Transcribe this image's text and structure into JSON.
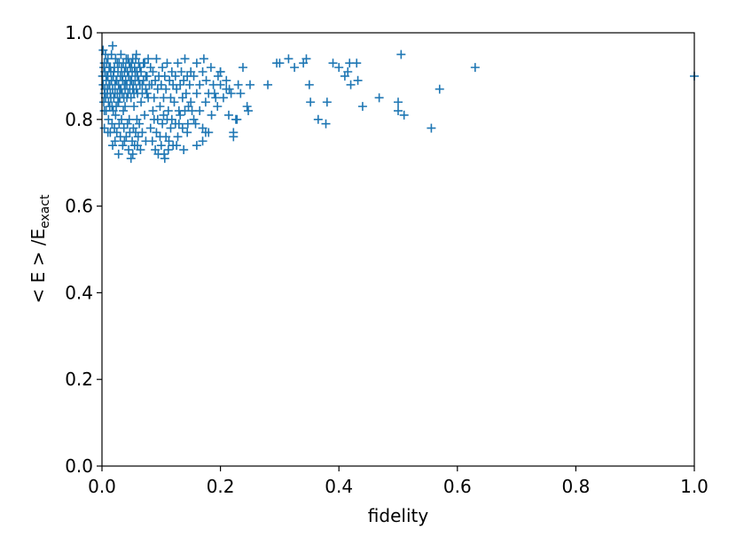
{
  "chart_data": {
    "type": "scatter",
    "xlabel": "fidelity",
    "ylabel_main": "< E > /E",
    "ylabel_sub": "exact",
    "xlim": [
      0.0,
      1.0
    ],
    "ylim": [
      0.0,
      1.0
    ],
    "xticks": [
      "0.0",
      "0.2",
      "0.4",
      "0.6",
      "0.8",
      "1.0"
    ],
    "yticks": [
      "0.0",
      "0.2",
      "0.4",
      "0.6",
      "0.8",
      "1.0"
    ],
    "marker": "+",
    "color": "#1f77b4",
    "grid": false,
    "points": [
      [
        0.002,
        0.96
      ],
      [
        0.004,
        0.93
      ],
      [
        0.006,
        0.95
      ],
      [
        0.008,
        0.9
      ],
      [
        0.01,
        0.94
      ],
      [
        0.012,
        0.88
      ],
      [
        0.014,
        0.92
      ],
      [
        0.016,
        0.95
      ],
      [
        0.018,
        0.97
      ],
      [
        0.02,
        0.91
      ],
      [
        0.022,
        0.86
      ],
      [
        0.024,
        0.89
      ],
      [
        0.026,
        0.93
      ],
      [
        0.028,
        0.84
      ],
      [
        0.03,
        0.87
      ],
      [
        0.032,
        0.95
      ],
      [
        0.034,
        0.9
      ],
      [
        0.036,
        0.82
      ],
      [
        0.038,
        0.88
      ],
      [
        0.04,
        0.92
      ],
      [
        0.042,
        0.85
      ],
      [
        0.044,
        0.94
      ],
      [
        0.046,
        0.8
      ],
      [
        0.048,
        0.89
      ],
      [
        0.05,
        0.93
      ],
      [
        0.052,
        0.87
      ],
      [
        0.054,
        0.83
      ],
      [
        0.056,
        0.91
      ],
      [
        0.058,
        0.95
      ],
      [
        0.06,
        0.86
      ],
      [
        0.062,
        0.89
      ],
      [
        0.064,
        0.92
      ],
      [
        0.066,
        0.84
      ],
      [
        0.068,
        0.88
      ],
      [
        0.07,
        0.93
      ],
      [
        0.072,
        0.81
      ],
      [
        0.074,
        0.9
      ],
      [
        0.076,
        0.86
      ],
      [
        0.078,
        0.94
      ],
      [
        0.08,
        0.88
      ],
      [
        0.003,
        0.84
      ],
      [
        0.005,
        0.87
      ],
      [
        0.007,
        0.82
      ],
      [
        0.009,
        0.86
      ],
      [
        0.011,
        0.8
      ],
      [
        0.013,
        0.83
      ],
      [
        0.015,
        0.85
      ],
      [
        0.017,
        0.79
      ],
      [
        0.019,
        0.82
      ],
      [
        0.021,
        0.78
      ],
      [
        0.023,
        0.81
      ],
      [
        0.025,
        0.77
      ],
      [
        0.027,
        0.84
      ],
      [
        0.029,
        0.79
      ],
      [
        0.031,
        0.76
      ],
      [
        0.033,
        0.8
      ],
      [
        0.035,
        0.74
      ],
      [
        0.037,
        0.78
      ],
      [
        0.039,
        0.83
      ],
      [
        0.041,
        0.76
      ],
      [
        0.043,
        0.79
      ],
      [
        0.045,
        0.73
      ],
      [
        0.047,
        0.77
      ],
      [
        0.049,
        0.71
      ],
      [
        0.051,
        0.75
      ],
      [
        0.053,
        0.78
      ],
      [
        0.055,
        0.74
      ],
      [
        0.057,
        0.77
      ],
      [
        0.059,
        0.8
      ],
      [
        0.061,
        0.76
      ],
      [
        0.063,
        0.79
      ],
      [
        0.065,
        0.73
      ],
      [
        0.001,
        0.9
      ],
      [
        0.002,
        0.88
      ],
      [
        0.003,
        0.92
      ],
      [
        0.004,
        0.86
      ],
      [
        0.005,
        0.91
      ],
      [
        0.006,
        0.85
      ],
      [
        0.007,
        0.89
      ],
      [
        0.008,
        0.93
      ],
      [
        0.009,
        0.87
      ],
      [
        0.01,
        0.9
      ],
      [
        0.011,
        0.84
      ],
      [
        0.012,
        0.92
      ],
      [
        0.013,
        0.88
      ],
      [
        0.014,
        0.86
      ],
      [
        0.015,
        0.91
      ],
      [
        0.016,
        0.89
      ],
      [
        0.017,
        0.83
      ],
      [
        0.018,
        0.87
      ],
      [
        0.019,
        0.9
      ],
      [
        0.02,
        0.85
      ],
      [
        0.021,
        0.92
      ],
      [
        0.022,
        0.88
      ],
      [
        0.023,
        0.94
      ],
      [
        0.024,
        0.83
      ],
      [
        0.025,
        0.89
      ],
      [
        0.026,
        0.86
      ],
      [
        0.027,
        0.91
      ],
      [
        0.028,
        0.88
      ],
      [
        0.029,
        0.93
      ],
      [
        0.03,
        0.85
      ],
      [
        0.031,
        0.9
      ],
      [
        0.032,
        0.87
      ],
      [
        0.033,
        0.92
      ],
      [
        0.034,
        0.86
      ],
      [
        0.035,
        0.89
      ],
      [
        0.036,
        0.93
      ],
      [
        0.037,
        0.85
      ],
      [
        0.038,
        0.91
      ],
      [
        0.039,
        0.87
      ],
      [
        0.04,
        0.89
      ],
      [
        0.041,
        0.94
      ],
      [
        0.042,
        0.88
      ],
      [
        0.043,
        0.91
      ],
      [
        0.044,
        0.86
      ],
      [
        0.045,
        0.9
      ],
      [
        0.046,
        0.93
      ],
      [
        0.047,
        0.87
      ],
      [
        0.048,
        0.92
      ],
      [
        0.049,
        0.85
      ],
      [
        0.05,
        0.89
      ],
      [
        0.051,
        0.91
      ],
      [
        0.052,
        0.94
      ],
      [
        0.053,
        0.88
      ],
      [
        0.054,
        0.86
      ],
      [
        0.055,
        0.92
      ],
      [
        0.056,
        0.89
      ],
      [
        0.057,
        0.94
      ],
      [
        0.058,
        0.87
      ],
      [
        0.059,
        0.91
      ],
      [
        0.06,
        0.9
      ],
      [
        0.062,
        0.93
      ],
      [
        0.064,
        0.88
      ],
      [
        0.066,
        0.91
      ],
      [
        0.068,
        0.86
      ],
      [
        0.07,
        0.89
      ],
      [
        0.072,
        0.93
      ],
      [
        0.074,
        0.87
      ],
      [
        0.076,
        0.9
      ],
      [
        0.078,
        0.85
      ],
      [
        0.082,
        0.92
      ],
      [
        0.084,
        0.88
      ],
      [
        0.086,
        0.91
      ],
      [
        0.088,
        0.85
      ],
      [
        0.09,
        0.89
      ],
      [
        0.092,
        0.94
      ],
      [
        0.094,
        0.87
      ],
      [
        0.096,
        0.9
      ],
      [
        0.098,
        0.83
      ],
      [
        0.1,
        0.88
      ],
      [
        0.102,
        0.92
      ],
      [
        0.104,
        0.85
      ],
      [
        0.106,
        0.9
      ],
      [
        0.108,
        0.87
      ],
      [
        0.11,
        0.93
      ],
      [
        0.112,
        0.82
      ],
      [
        0.114,
        0.89
      ],
      [
        0.116,
        0.85
      ],
      [
        0.118,
        0.91
      ],
      [
        0.12,
        0.88
      ],
      [
        0.122,
        0.84
      ],
      [
        0.124,
        0.9
      ],
      [
        0.126,
        0.87
      ],
      [
        0.128,
        0.93
      ],
      [
        0.13,
        0.82
      ],
      [
        0.132,
        0.88
      ],
      [
        0.134,
        0.91
      ],
      [
        0.136,
        0.85
      ],
      [
        0.138,
        0.89
      ],
      [
        0.14,
        0.94
      ],
      [
        0.142,
        0.86
      ],
      [
        0.144,
        0.9
      ],
      [
        0.146,
        0.83
      ],
      [
        0.148,
        0.88
      ],
      [
        0.15,
        0.91
      ],
      [
        0.082,
        0.78
      ],
      [
        0.085,
        0.75
      ],
      [
        0.088,
        0.8
      ],
      [
        0.09,
        0.73
      ],
      [
        0.092,
        0.77
      ],
      [
        0.095,
        0.72
      ],
      [
        0.098,
        0.76
      ],
      [
        0.1,
        0.74
      ],
      [
        0.102,
        0.79
      ],
      [
        0.105,
        0.72
      ],
      [
        0.108,
        0.76
      ],
      [
        0.11,
        0.8
      ],
      [
        0.113,
        0.75
      ],
      [
        0.116,
        0.78
      ],
      [
        0.12,
        0.74
      ],
      [
        0.124,
        0.79
      ],
      [
        0.128,
        0.76
      ],
      [
        0.132,
        0.81
      ],
      [
        0.136,
        0.78
      ],
      [
        0.14,
        0.82
      ],
      [
        0.145,
        0.79
      ],
      [
        0.15,
        0.84
      ],
      [
        0.155,
        0.8
      ],
      [
        0.16,
        0.86
      ],
      [
        0.165,
        0.82
      ],
      [
        0.17,
        0.78
      ],
      [
        0.175,
        0.84
      ],
      [
        0.18,
        0.77
      ],
      [
        0.185,
        0.81
      ],
      [
        0.19,
        0.86
      ],
      [
        0.195,
        0.83
      ],
      [
        0.2,
        0.88
      ],
      [
        0.155,
        0.9
      ],
      [
        0.16,
        0.93
      ],
      [
        0.165,
        0.88
      ],
      [
        0.17,
        0.91
      ],
      [
        0.172,
        0.94
      ],
      [
        0.176,
        0.89
      ],
      [
        0.18,
        0.86
      ],
      [
        0.184,
        0.92
      ],
      [
        0.188,
        0.88
      ],
      [
        0.192,
        0.85
      ],
      [
        0.196,
        0.9
      ],
      [
        0.2,
        0.91
      ],
      [
        0.205,
        0.85
      ],
      [
        0.21,
        0.87
      ],
      [
        0.214,
        0.81
      ],
      [
        0.218,
        0.86
      ],
      [
        0.222,
        0.77
      ],
      [
        0.226,
        0.8
      ],
      [
        0.23,
        0.88
      ],
      [
        0.234,
        0.86
      ],
      [
        0.238,
        0.92
      ],
      [
        0.245,
        0.83
      ],
      [
        0.25,
        0.88
      ],
      [
        0.222,
        0.76
      ],
      [
        0.21,
        0.89
      ],
      [
        0.215,
        0.87
      ],
      [
        0.228,
        0.8
      ],
      [
        0.247,
        0.82
      ],
      [
        0.2,
        0.91
      ],
      [
        0.17,
        0.75
      ],
      [
        0.175,
        0.77
      ],
      [
        0.16,
        0.74
      ],
      [
        0.112,
        0.73
      ],
      [
        0.106,
        0.71
      ],
      [
        0.126,
        0.74
      ],
      [
        0.138,
        0.73
      ],
      [
        0.052,
        0.72
      ],
      [
        0.022,
        0.75
      ],
      [
        0.014,
        0.77
      ],
      [
        0.004,
        0.78
      ],
      [
        0.004,
        0.82
      ],
      [
        0.01,
        0.77
      ],
      [
        0.018,
        0.74
      ],
      [
        0.028,
        0.72
      ],
      [
        0.038,
        0.75
      ],
      [
        0.06,
        0.74
      ],
      [
        0.068,
        0.77
      ],
      [
        0.074,
        0.75
      ],
      [
        0.086,
        0.82
      ],
      [
        0.094,
        0.8
      ],
      [
        0.104,
        0.81
      ],
      [
        0.118,
        0.8
      ],
      [
        0.13,
        0.79
      ],
      [
        0.144,
        0.77
      ],
      [
        0.152,
        0.82
      ],
      [
        0.158,
        0.79
      ],
      [
        0.28,
        0.88
      ],
      [
        0.295,
        0.93
      ],
      [
        0.3,
        0.93
      ],
      [
        0.315,
        0.94
      ],
      [
        0.325,
        0.92
      ],
      [
        0.34,
        0.93
      ],
      [
        0.345,
        0.94
      ],
      [
        0.35,
        0.88
      ],
      [
        0.352,
        0.84
      ],
      [
        0.365,
        0.8
      ],
      [
        0.38,
        0.84
      ],
      [
        0.378,
        0.79
      ],
      [
        0.39,
        0.93
      ],
      [
        0.4,
        0.92
      ],
      [
        0.41,
        0.9
      ],
      [
        0.415,
        0.91
      ],
      [
        0.418,
        0.93
      ],
      [
        0.42,
        0.88
      ],
      [
        0.43,
        0.93
      ],
      [
        0.432,
        0.89
      ],
      [
        0.44,
        0.83
      ],
      [
        0.468,
        0.85
      ],
      [
        0.5,
        0.84
      ],
      [
        0.505,
        0.95
      ],
      [
        0.5,
        0.82
      ],
      [
        0.51,
        0.81
      ],
      [
        0.556,
        0.78
      ],
      [
        0.57,
        0.87
      ],
      [
        0.63,
        0.92
      ],
      [
        1.0,
        0.9
      ]
    ]
  }
}
